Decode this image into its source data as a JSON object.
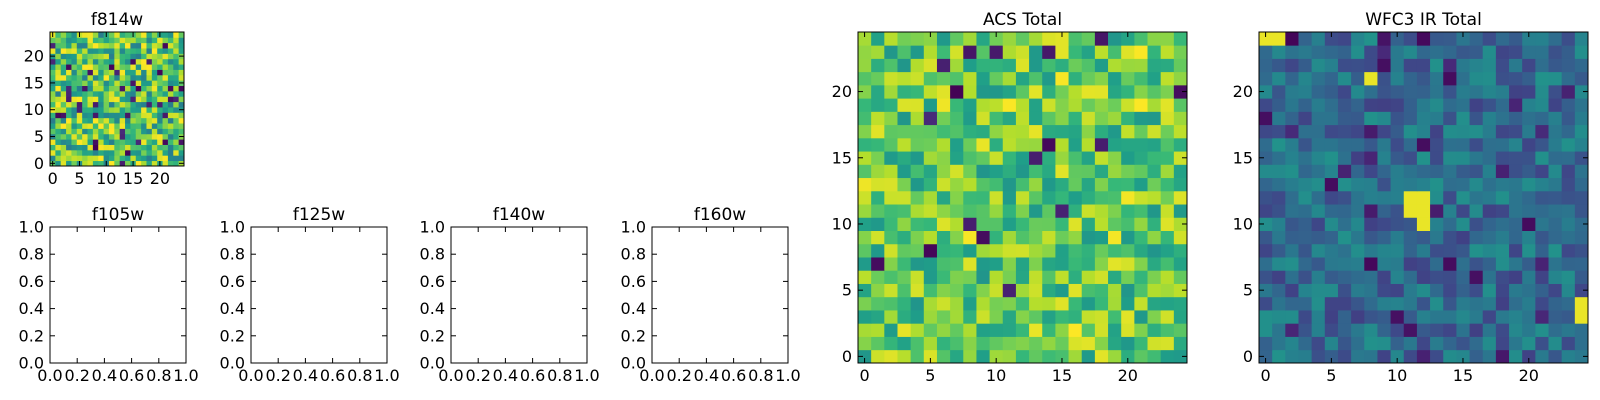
{
  "chart_data": [
    {
      "type": "heatmap",
      "title": "f814w",
      "xlabel": "",
      "ylabel": "",
      "xlim": [
        -0.5,
        24.5
      ],
      "ylim": [
        -0.5,
        24.5
      ],
      "xticks": [
        0,
        5,
        10,
        15,
        20
      ],
      "yticks": [
        0,
        5,
        10,
        15,
        20
      ],
      "grid_size": [
        25,
        25
      ],
      "colormap": "viridis",
      "random_seed": 814,
      "value_mean": 0.72,
      "value_spread": 0.3,
      "low_outlier_fraction": 0.05,
      "high_outlier_fraction": 0.03,
      "hot_cells": []
    },
    {
      "type": "empty",
      "title": "f105w",
      "xlim": [
        0.0,
        1.0
      ],
      "ylim": [
        0.0,
        1.0
      ],
      "xticks": [
        "0.0",
        "0.2",
        "0.4",
        "0.6",
        "0.8",
        "1.0"
      ],
      "yticks": [
        "0.0",
        "0.2",
        "0.4",
        "0.6",
        "0.8",
        "1.0"
      ]
    },
    {
      "type": "empty",
      "title": "f125w",
      "xlim": [
        0.0,
        1.0
      ],
      "ylim": [
        0.0,
        1.0
      ],
      "xticks": [
        "0.0",
        "0.2",
        "0.4",
        "0.6",
        "0.8",
        "1.0"
      ],
      "yticks": [
        "0.0",
        "0.2",
        "0.4",
        "0.6",
        "0.8",
        "1.0"
      ]
    },
    {
      "type": "empty",
      "title": "f140w",
      "xlim": [
        0.0,
        1.0
      ],
      "ylim": [
        0.0,
        1.0
      ],
      "xticks": [
        "0.0",
        "0.2",
        "0.4",
        "0.6",
        "0.8",
        "1.0"
      ],
      "yticks": [
        "0.0",
        "0.2",
        "0.4",
        "0.6",
        "0.8",
        "1.0"
      ]
    },
    {
      "type": "empty",
      "title": "f160w",
      "xlim": [
        0.0,
        1.0
      ],
      "ylim": [
        0.0,
        1.0
      ],
      "xticks": [
        "0.0",
        "0.2",
        "0.4",
        "0.6",
        "0.8",
        "1.0"
      ],
      "yticks": [
        "0.0",
        "0.2",
        "0.4",
        "0.6",
        "0.8",
        "1.0"
      ]
    },
    {
      "type": "heatmap",
      "title": "ACS Total",
      "xlabel": "",
      "ylabel": "",
      "xlim": [
        -0.5,
        24.5
      ],
      "ylim": [
        -0.5,
        24.5
      ],
      "xticks": [
        0,
        5,
        10,
        15,
        20
      ],
      "yticks": [
        0,
        5,
        10,
        15,
        20
      ],
      "grid_size": [
        25,
        25
      ],
      "colormap": "viridis",
      "random_seed": 2001,
      "value_mean": 0.74,
      "value_spread": 0.22,
      "low_outlier_fraction": 0.03,
      "high_outlier_fraction": 0.04,
      "hot_cells": []
    },
    {
      "type": "heatmap",
      "title": "WFC3 IR Total",
      "xlabel": "",
      "ylabel": "",
      "xlim": [
        -0.5,
        24.5
      ],
      "ylim": [
        -0.5,
        24.5
      ],
      "xticks": [
        0,
        5,
        10,
        15,
        20
      ],
      "yticks": [
        0,
        5,
        10,
        15,
        20
      ],
      "grid_size": [
        25,
        25
      ],
      "colormap": "viridis",
      "random_seed": 3003,
      "value_mean": 0.35,
      "value_spread": 0.16,
      "low_outlier_fraction": 0.05,
      "high_outlier_fraction": 0.0,
      "hot_cells": [
        [
          11,
          11
        ],
        [
          12,
          11
        ],
        [
          11,
          12
        ],
        [
          12,
          12
        ],
        [
          12,
          10
        ],
        [
          24,
          3
        ],
        [
          24,
          4
        ],
        [
          0,
          24
        ],
        [
          1,
          24
        ],
        [
          8,
          21
        ]
      ]
    }
  ]
}
